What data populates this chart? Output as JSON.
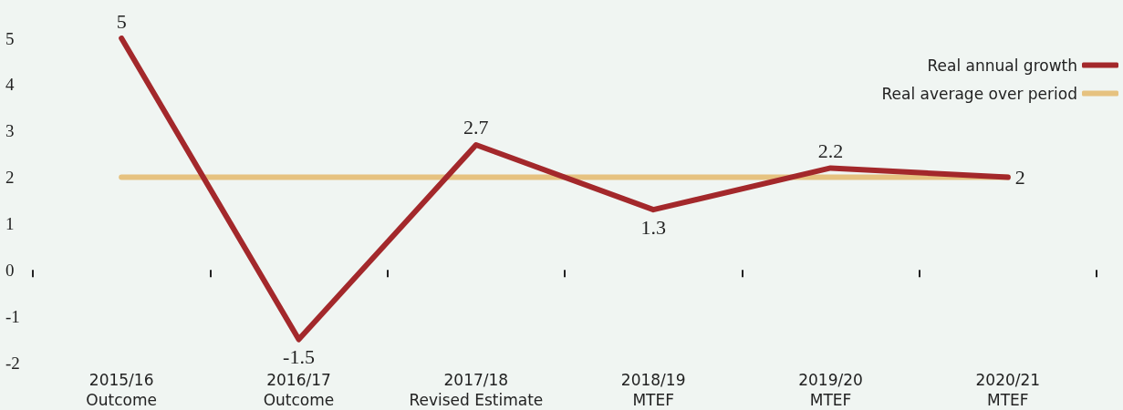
{
  "chart_data": {
    "type": "line",
    "categories": [
      "2015/16\nOutcome",
      "2016/17\nOutcome",
      "2017/18\nRevised Estimate",
      "2018/19\nMTEF",
      "2019/20\nMTEF",
      "2020/21\nMTEF"
    ],
    "series": [
      {
        "name": "Real annual growth",
        "color": "#a3282b",
        "values": [
          5,
          -1.5,
          2.7,
          1.3,
          2.2,
          2
        ],
        "value_labels": [
          "5",
          "-1.5",
          "2.7",
          "1.3",
          "2.2",
          "2"
        ]
      },
      {
        "name": "Real average over period",
        "color": "#e6c280",
        "values": [
          2,
          2,
          2,
          2,
          2,
          2
        ]
      }
    ],
    "ylim": [
      -2,
      5
    ],
    "yticks": [
      -2,
      -1,
      0,
      1,
      2,
      3,
      4,
      5
    ],
    "grid": false,
    "legend": "top right",
    "marker": "none",
    "line_style": "solid"
  }
}
